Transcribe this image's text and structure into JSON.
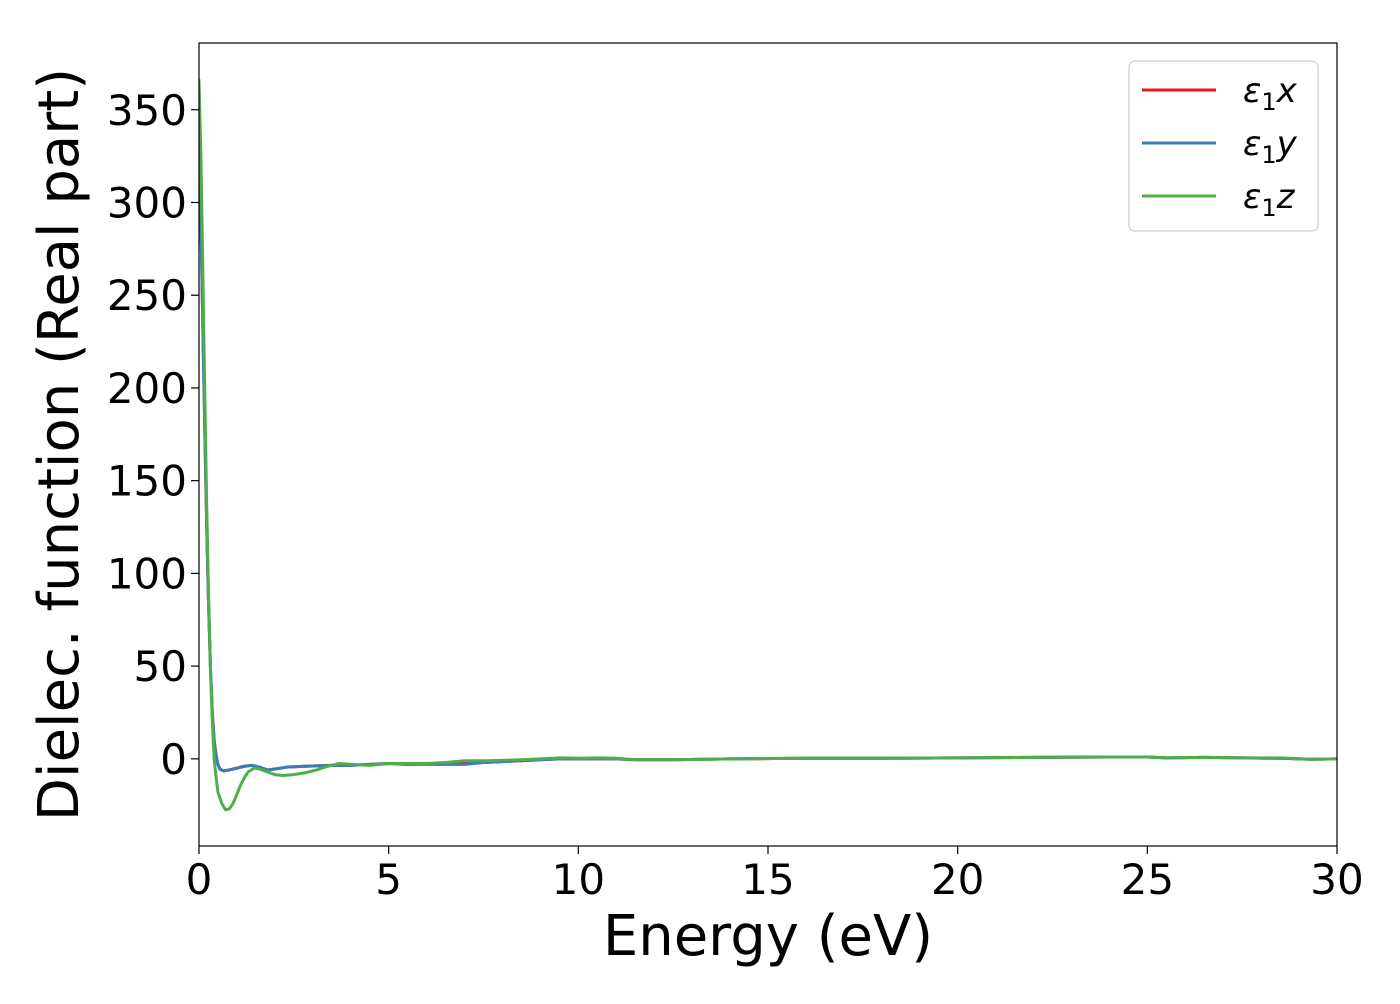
{
  "chart_data": {
    "type": "line",
    "title": "",
    "xlabel": "Energy (eV)",
    "ylabel": "Dielec. function (Real part)",
    "xlim": [
      0,
      30
    ],
    "ylim": [
      -47,
      386
    ],
    "xticks": [
      0,
      5,
      10,
      15,
      20,
      25,
      30
    ],
    "yticks": [
      0,
      50,
      100,
      150,
      200,
      250,
      300,
      350
    ],
    "grid": false,
    "legend_position": "top-right",
    "series": [
      {
        "name": "ε1x",
        "legend_base": "ε",
        "legend_sub": "1",
        "legend_suffix": "x",
        "color": "#e41a1c",
        "points": [
          [
            0,
            322
          ],
          [
            0.05,
            290
          ],
          [
            0.1,
            235
          ],
          [
            0.15,
            180
          ],
          [
            0.2,
            128
          ],
          [
            0.25,
            85
          ],
          [
            0.3,
            50
          ],
          [
            0.35,
            25
          ],
          [
            0.4,
            10
          ],
          [
            0.45,
            2
          ],
          [
            0.5,
            -3
          ],
          [
            0.55,
            -5.5
          ],
          [
            0.65,
            -6.5
          ],
          [
            0.8,
            -6
          ],
          [
            1.0,
            -5
          ],
          [
            1.2,
            -4
          ],
          [
            1.4,
            -3.5
          ],
          [
            1.6,
            -4.5
          ],
          [
            1.8,
            -6
          ],
          [
            2.0,
            -5.5
          ],
          [
            2.3,
            -4.5
          ],
          [
            2.8,
            -4
          ],
          [
            3.5,
            -3.5
          ],
          [
            4.0,
            -3.5
          ],
          [
            4.5,
            -3
          ],
          [
            5.0,
            -2.5
          ],
          [
            5.5,
            -3
          ],
          [
            6.0,
            -2.5
          ],
          [
            6.5,
            -2.5
          ],
          [
            7.0,
            -2.5
          ],
          [
            7.5,
            -2
          ],
          [
            8.0,
            -1.5
          ],
          [
            8.5,
            -1
          ],
          [
            9.0,
            -0.5
          ],
          [
            9.5,
            0
          ],
          [
            10.0,
            0
          ],
          [
            10.5,
            0
          ],
          [
            11.0,
            0
          ],
          [
            11.5,
            -0.5
          ],
          [
            12.5,
            -0.5
          ],
          [
            14.0,
            0
          ],
          [
            16.0,
            0.3
          ],
          [
            18.0,
            0.3
          ],
          [
            20.0,
            0.5
          ],
          [
            22.0,
            0.8
          ],
          [
            24.0,
            1
          ],
          [
            25.0,
            1
          ],
          [
            25.5,
            0.5
          ],
          [
            26.5,
            0.8
          ],
          [
            27.5,
            0.5
          ],
          [
            28.5,
            0.3
          ],
          [
            29.3,
            -0.2
          ],
          [
            30.0,
            0
          ]
        ]
      },
      {
        "name": "ε1y",
        "legend_base": "ε",
        "legend_sub": "1",
        "legend_suffix": "y",
        "color": "#377eb8",
        "points": [
          [
            0,
            322
          ],
          [
            0.05,
            290
          ],
          [
            0.1,
            235
          ],
          [
            0.15,
            180
          ],
          [
            0.2,
            128
          ],
          [
            0.25,
            85
          ],
          [
            0.3,
            50
          ],
          [
            0.35,
            25
          ],
          [
            0.4,
            10
          ],
          [
            0.45,
            2
          ],
          [
            0.5,
            -3
          ],
          [
            0.55,
            -5.5
          ],
          [
            0.65,
            -6.5
          ],
          [
            0.8,
            -6
          ],
          [
            1.0,
            -5
          ],
          [
            1.2,
            -4
          ],
          [
            1.4,
            -3.5
          ],
          [
            1.6,
            -4.5
          ],
          [
            1.8,
            -6
          ],
          [
            2.0,
            -5.5
          ],
          [
            2.3,
            -4.5
          ],
          [
            2.8,
            -4
          ],
          [
            3.5,
            -3.5
          ],
          [
            4.0,
            -3.5
          ],
          [
            4.5,
            -3
          ],
          [
            5.0,
            -2.5
          ],
          [
            5.5,
            -3
          ],
          [
            6.0,
            -3
          ],
          [
            6.5,
            -3
          ],
          [
            7.0,
            -3
          ],
          [
            7.5,
            -2
          ],
          [
            8.0,
            -1.5
          ],
          [
            8.5,
            -1
          ],
          [
            9.0,
            -0.5
          ],
          [
            9.5,
            0
          ],
          [
            10.0,
            0
          ],
          [
            10.5,
            0
          ],
          [
            11.0,
            0
          ],
          [
            11.5,
            -0.5
          ],
          [
            12.5,
            -0.5
          ],
          [
            14.0,
            0
          ],
          [
            16.0,
            0.3
          ],
          [
            18.0,
            0.3
          ],
          [
            20.0,
            0.5
          ],
          [
            22.0,
            0.8
          ],
          [
            24.0,
            1
          ],
          [
            25.0,
            1
          ],
          [
            25.5,
            0.5
          ],
          [
            26.5,
            0.8
          ],
          [
            27.5,
            0.5
          ],
          [
            28.5,
            0.3
          ],
          [
            29.3,
            -0.2
          ],
          [
            30.0,
            0
          ]
        ]
      },
      {
        "name": "ε1z",
        "legend_base": "ε",
        "legend_sub": "1",
        "legend_suffix": "z",
        "color": "#4daf4a",
        "points": [
          [
            0,
            366
          ],
          [
            0.05,
            325
          ],
          [
            0.1,
            265
          ],
          [
            0.15,
            200
          ],
          [
            0.2,
            140
          ],
          [
            0.25,
            90
          ],
          [
            0.3,
            50
          ],
          [
            0.35,
            20
          ],
          [
            0.4,
            0
          ],
          [
            0.45,
            -10
          ],
          [
            0.5,
            -18
          ],
          [
            0.6,
            -24
          ],
          [
            0.7,
            -27.5
          ],
          [
            0.8,
            -27
          ],
          [
            0.9,
            -24
          ],
          [
            1.0,
            -19
          ],
          [
            1.1,
            -14
          ],
          [
            1.2,
            -10
          ],
          [
            1.3,
            -7
          ],
          [
            1.45,
            -5
          ],
          [
            1.6,
            -5.5
          ],
          [
            1.8,
            -7
          ],
          [
            2.0,
            -8.5
          ],
          [
            2.2,
            -9
          ],
          [
            2.5,
            -8.5
          ],
          [
            2.8,
            -7.5
          ],
          [
            3.1,
            -6
          ],
          [
            3.4,
            -4
          ],
          [
            3.7,
            -2.5
          ],
          [
            4.0,
            -3
          ],
          [
            4.5,
            -3.5
          ],
          [
            5.0,
            -2.5
          ],
          [
            5.5,
            -2.5
          ],
          [
            6.0,
            -2.5
          ],
          [
            6.5,
            -2
          ],
          [
            7.0,
            -1
          ],
          [
            7.5,
            -1
          ],
          [
            8.0,
            -0.8
          ],
          [
            8.5,
            -0.5
          ],
          [
            9.0,
            0
          ],
          [
            9.5,
            0.5
          ],
          [
            10.0,
            0.3
          ],
          [
            10.5,
            0.5
          ],
          [
            11.0,
            0.3
          ],
          [
            11.5,
            -0.5
          ],
          [
            12.5,
            -0.5
          ],
          [
            14.0,
            0
          ],
          [
            16.0,
            0.3
          ],
          [
            18.0,
            0.3
          ],
          [
            20.0,
            0.5
          ],
          [
            22.0,
            0.8
          ],
          [
            24.0,
            1
          ],
          [
            25.0,
            1
          ],
          [
            25.5,
            0.5
          ],
          [
            26.5,
            0.8
          ],
          [
            27.5,
            0.5
          ],
          [
            28.5,
            0.5
          ],
          [
            29.3,
            -0.2
          ],
          [
            30.0,
            0
          ]
        ]
      }
    ]
  }
}
